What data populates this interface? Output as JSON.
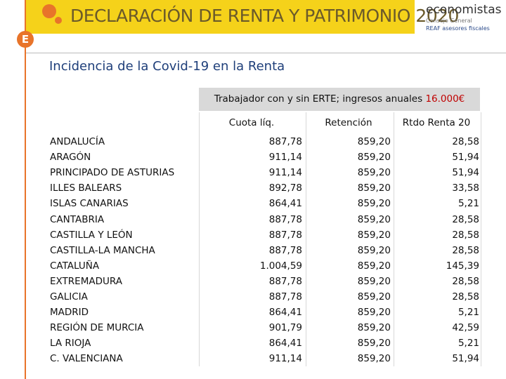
{
  "header": {
    "title": "DECLARACIÓN DE RENTA Y PATRIMONIO 2020",
    "logo_name": "economistas",
    "logo_sub1": "Consejo General",
    "logo_sub2": "REAF asesores fiscales",
    "badge": "E"
  },
  "subtitle": "Incidencia de la Covid-19 en la Renta",
  "table": {
    "caption": "Trabajador con y sin ERTE; ingresos anuales",
    "caption_highlight": "16.000€",
    "columns": [
      "Cuota líq.",
      "Retención",
      "Rtdo Renta 20"
    ],
    "rows": [
      [
        "ANDALUCÍA",
        "887,78",
        "859,20",
        "28,58"
      ],
      [
        "ARAGÓN",
        "911,14",
        "859,20",
        "51,94"
      ],
      [
        "PRINCIPADO DE ASTURIAS",
        "911,14",
        "859,20",
        "51,94"
      ],
      [
        "ILLES BALEARS",
        "892,78",
        "859,20",
        "33,58"
      ],
      [
        "ISLAS CANARIAS",
        "864,41",
        "859,20",
        "5,21"
      ],
      [
        "CANTABRIA",
        "887,78",
        "859,20",
        "28,58"
      ],
      [
        "CASTILLA Y LEÓN",
        "887,78",
        "859,20",
        "28,58"
      ],
      [
        "CASTILLA-LA MANCHA",
        "887,78",
        "859,20",
        "28,58"
      ],
      [
        "CATALUÑA",
        "1.004,59",
        "859,20",
        "145,39"
      ],
      [
        "EXTREMADURA",
        "887,78",
        "859,20",
        "28,58"
      ],
      [
        "GALICIA",
        "887,78",
        "859,20",
        "28,58"
      ],
      [
        "MADRID",
        "864,41",
        "859,20",
        "5,21"
      ],
      [
        "REGIÓN DE MURCIA",
        "901,79",
        "859,20",
        "42,59"
      ],
      [
        "LA RIOJA",
        "864,41",
        "859,20",
        "5,21"
      ],
      [
        "C. VALENCIANA",
        "911,14",
        "859,20",
        "51,94"
      ]
    ]
  }
}
